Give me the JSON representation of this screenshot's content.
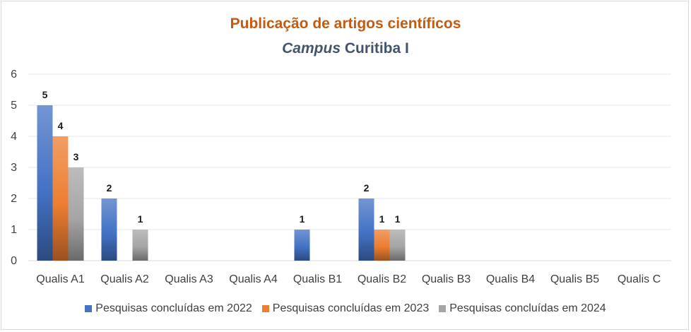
{
  "chart_data": {
    "type": "bar",
    "title": "Publicação de artigos científicos",
    "subtitle_italic": "Campus",
    "subtitle_rest": " Curitiba I",
    "categories": [
      "Qualis A1",
      "Qualis A2",
      "Qualis A3",
      "Qualis A4",
      "Qualis B1",
      "Qualis B2",
      "Qualis B3",
      "Qualis B4",
      "Qualis B5",
      "Qualis C"
    ],
    "series": [
      {
        "name": "Pesquisas concluídas em 2022",
        "values": [
          5,
          2,
          null,
          null,
          1,
          2,
          null,
          null,
          null,
          null
        ],
        "color": "#4472c4"
      },
      {
        "name": "Pesquisas concluídas em 2023",
        "values": [
          4,
          null,
          null,
          null,
          null,
          1,
          null,
          null,
          null,
          null
        ],
        "color": "#ed7d31"
      },
      {
        "name": "Pesquisas concluídas em 2024",
        "values": [
          3,
          1,
          null,
          null,
          null,
          1,
          null,
          null,
          null,
          null
        ],
        "color": "#a5a5a5"
      }
    ],
    "ylim": [
      0,
      6
    ],
    "yticks": [
      0,
      1,
      2,
      3,
      4,
      5,
      6
    ],
    "grid": true,
    "legend_position": "bottom",
    "xlabel": "",
    "ylabel": ""
  }
}
